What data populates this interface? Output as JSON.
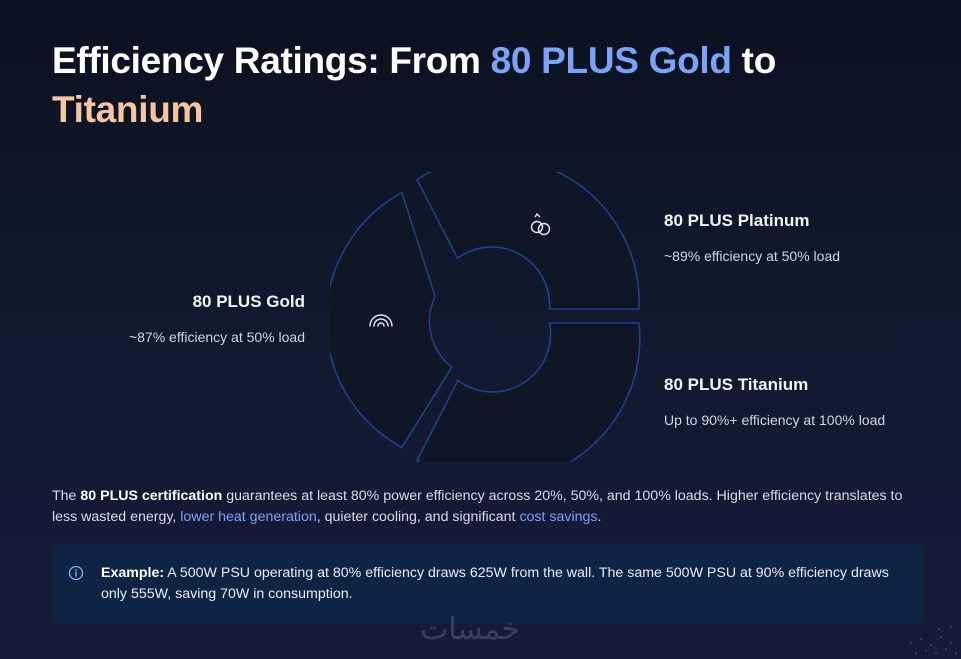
{
  "title": {
    "part1": "Efficiency Ratings: From ",
    "highlight1": "80 PLUS Gold",
    "part2": " to ",
    "highlight2": "Titanium"
  },
  "segments": [
    {
      "title": "80 PLUS Gold",
      "desc": "~87% efficiency at 50% load",
      "icon": "rainbow-icon"
    },
    {
      "title": "80 PLUS Platinum",
      "desc": "~89% efficiency at 50% load",
      "icon": "rings-icon"
    },
    {
      "title": "80 PLUS Titanium",
      "desc": "Up to 90%+ efficiency at 100% load",
      "icon": ""
    }
  ],
  "paragraph": {
    "p1": "The ",
    "bold": "80 PLUS certification",
    "p2": " guarantees at least 80% power efficiency across 20%, 50%, and 100% loads. Higher efficiency translates to less wasted energy, ",
    "link1": "lower heat generation",
    "p3": ", quieter cooling, and significant ",
    "link2": "cost savings",
    "p4": "."
  },
  "example": {
    "icon": "info-icon",
    "label": "Example:",
    "text": " A 500W PSU operating at 80% efficiency draws 625W from the wall. The same 500W PSU at 90% efficiency draws only 555W, saving 70W in consumption."
  },
  "watermark": "خمسات",
  "colors": {
    "accent_blue": "#7aa2f7",
    "accent_peach": "#f5c6a0",
    "background": "#0b1120",
    "callout_bg": "#0e2445",
    "segment_stroke": "#1f3f8f"
  }
}
